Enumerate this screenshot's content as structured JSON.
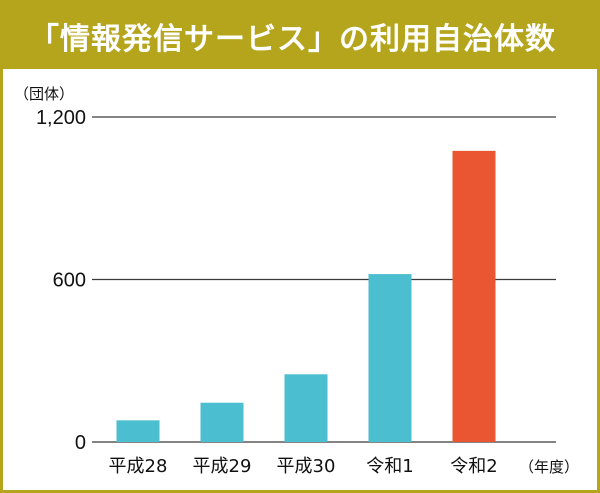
{
  "header": {
    "title": "「情報発信サービス」の利用自治体数"
  },
  "colors": {
    "frame": "#b5a51d",
    "bar": "#4bbecf",
    "highlight": "#ea5532",
    "grid": "#3a3a3a"
  },
  "chart_data": {
    "type": "bar",
    "title": "「情報発信サービス」の利用自治体数",
    "y_unit_label": "（団体）",
    "x_unit_label": "（年度）",
    "categories": [
      "平成28",
      "平成29",
      "平成30",
      "令和1",
      "令和2"
    ],
    "values": [
      80,
      145,
      250,
      620,
      1075
    ],
    "highlight_index": 4,
    "ylim": [
      0,
      1200
    ],
    "y_ticks": [
      0,
      600,
      1200
    ],
    "y_tick_labels": [
      "0",
      "600",
      "1,200"
    ],
    "grid": true
  }
}
